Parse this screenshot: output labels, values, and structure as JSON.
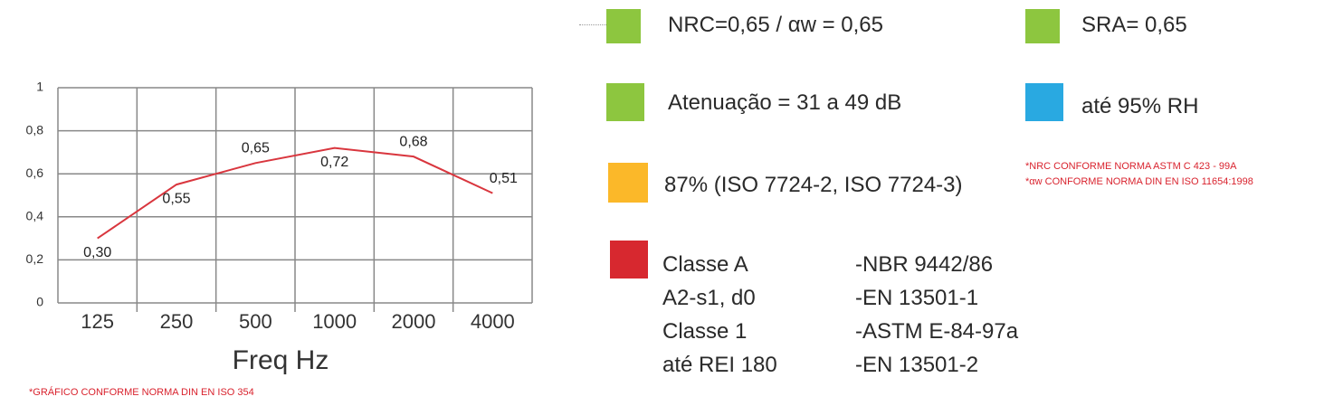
{
  "chart_data": {
    "type": "line",
    "categories": [
      "125",
      "250",
      "500",
      "1000",
      "2000",
      "4000"
    ],
    "values": [
      0.3,
      0.55,
      0.65,
      0.72,
      0.68,
      0.51
    ],
    "value_labels": [
      "0,30",
      "0,55",
      "0,65",
      "0,72",
      "0,68",
      "0,51"
    ],
    "color": "#d9363e",
    "ylim": [
      0,
      1
    ],
    "yticks": [
      0,
      {
        "value": 0.2,
        "label": "0,2"
      },
      {
        "value": 0.4,
        "label": "0,4"
      },
      {
        "value": 0.6,
        "label": "0,6"
      },
      {
        "value": 0.8,
        "label": "0,8"
      },
      1
    ],
    "grid": true,
    "x_label": "Freq  Hz",
    "note": "*GRÁFICO CONFORME NORMA DIN EN ISO 354"
  },
  "specs": {
    "nrc": "NRC=0,65  / αw = 0,65",
    "sra": "SRA= 0,65",
    "attenuation": "Atenuação = 31 a 49 dB",
    "humidity": "até 95% RH",
    "light": "87% (ISO 7724-2, ISO 7724-3)",
    "notes": [
      "*NRC CONFORME NORMA ASTM C 423 - 99A",
      "*αw CONFORME NORMA DIN EN ISO 11654:1998"
    ],
    "fire": [
      [
        "Classe A",
        "-NBR 9442/86"
      ],
      [
        "A2-s1, d0",
        "-EN 13501-1"
      ],
      [
        "Classe 1",
        "-ASTM E-84-97a"
      ],
      [
        "até REI 180",
        "-EN 13501-2"
      ]
    ]
  }
}
